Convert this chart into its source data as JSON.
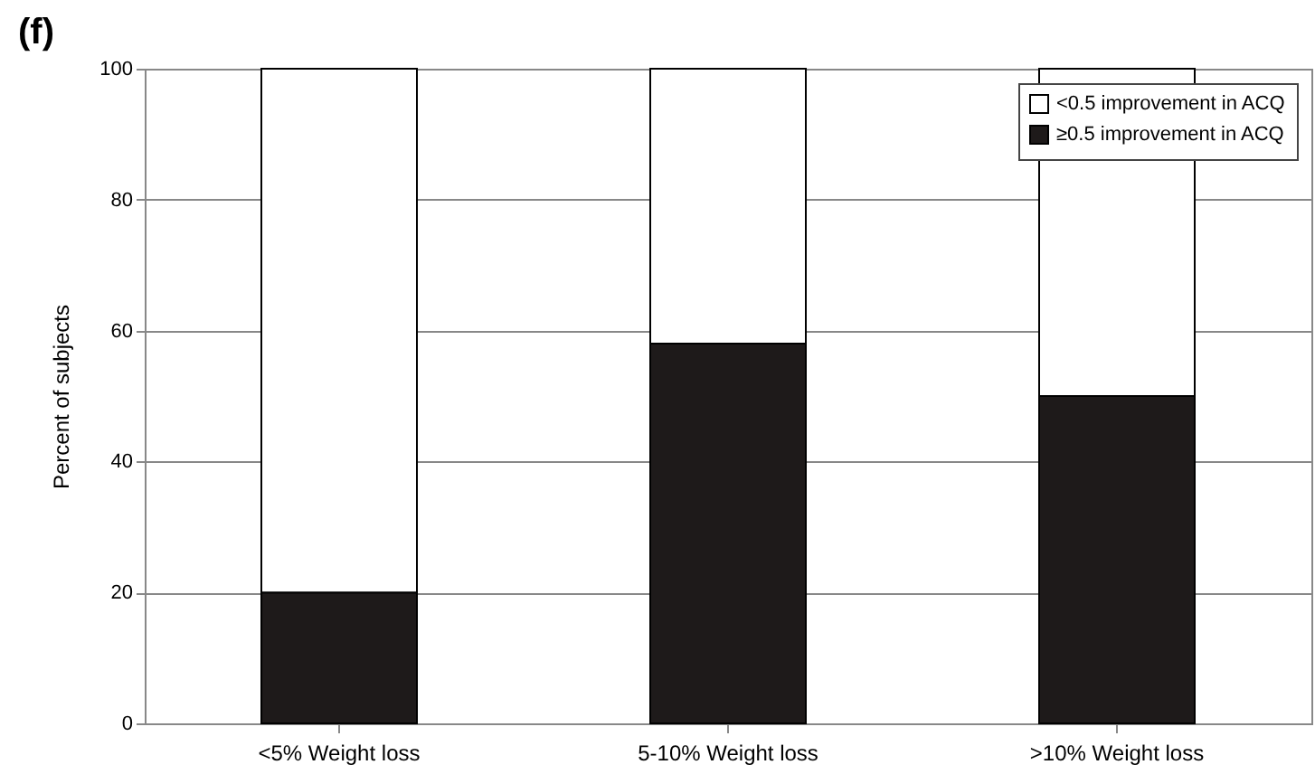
{
  "chart_data": {
    "type": "bar",
    "title": "(f)",
    "ylabel": "Percent of subjects",
    "stacked": true,
    "categories": [
      "<5% Weight loss",
      "5-10% Weight loss",
      ">10% Weight loss"
    ],
    "series": [
      {
        "name": "≥0.5 improvement in ACQ",
        "color": "#1e1a1a",
        "values": [
          20,
          58,
          50
        ]
      },
      {
        "name": "<0.5 improvement in ACQ",
        "color": "#ffffff",
        "values": [
          80,
          42,
          50
        ]
      }
    ],
    "ylim": [
      0,
      100
    ],
    "yticks": [
      0,
      20,
      40,
      60,
      80,
      100
    ],
    "grid": "y",
    "legend": "top right"
  }
}
